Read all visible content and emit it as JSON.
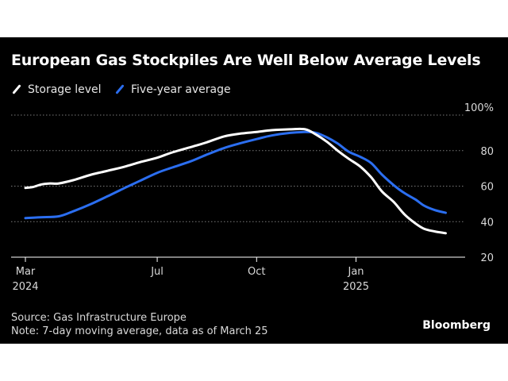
{
  "title": "European Gas Stockpiles Are Well Below Average Levels",
  "legend": [
    {
      "label": "Storage level",
      "color": "#ffffff"
    },
    {
      "label": "Five-year average",
      "color": "#2b6ef0"
    }
  ],
  "footer": {
    "source": "Source: Gas Infrastructure Europe",
    "note": "Note: 7-day moving average, data as of March 25"
  },
  "brand": "Bloomberg",
  "chart_data": {
    "type": "line",
    "title": "European Gas Stockpiles Are Well Below Average Levels",
    "xlabel": "",
    "ylabel": "",
    "ylim": [
      20,
      100
    ],
    "yticks": [
      {
        "value": 100,
        "label": "100%"
      },
      {
        "value": 80,
        "label": "80"
      },
      {
        "value": 60,
        "label": "60"
      },
      {
        "value": 40,
        "label": "40"
      },
      {
        "value": 20,
        "label": "20"
      }
    ],
    "xlim": [
      "2024-03-01",
      "2025-04-12"
    ],
    "xticks": [
      {
        "date": "2024-03-01",
        "label": [
          "Mar",
          "2024"
        ]
      },
      {
        "date": "2024-07-01",
        "label": [
          "Jul"
        ]
      },
      {
        "date": "2024-10-01",
        "label": [
          "Oct"
        ]
      },
      {
        "date": "2025-01-01",
        "label": [
          "Jan",
          "2025"
        ]
      }
    ],
    "grid": true,
    "legend_position": "top-left",
    "series": [
      {
        "name": "Storage level",
        "color": "#ffffff",
        "points": [
          [
            "2024-03-01",
            59
          ],
          [
            "2024-03-08",
            59.5
          ],
          [
            "2024-03-16",
            61
          ],
          [
            "2024-03-24",
            61.5
          ],
          [
            "2024-04-01",
            61.5
          ],
          [
            "2024-04-15",
            63.5
          ],
          [
            "2024-05-01",
            66.5
          ],
          [
            "2024-05-15",
            68.5
          ],
          [
            "2024-06-01",
            71
          ],
          [
            "2024-06-15",
            73.5
          ],
          [
            "2024-07-01",
            76
          ],
          [
            "2024-07-15",
            79
          ],
          [
            "2024-08-01",
            82
          ],
          [
            "2024-08-15",
            84.5
          ],
          [
            "2024-09-01",
            88
          ],
          [
            "2024-09-15",
            89.5
          ],
          [
            "2024-10-01",
            90.5
          ],
          [
            "2024-10-15",
            91.5
          ],
          [
            "2024-11-01",
            92
          ],
          [
            "2024-11-15",
            92
          ],
          [
            "2024-11-25",
            89
          ],
          [
            "2024-12-05",
            85
          ],
          [
            "2024-12-15",
            80
          ],
          [
            "2024-12-25",
            75.5
          ],
          [
            "2025-01-05",
            71
          ],
          [
            "2025-01-15",
            65
          ],
          [
            "2025-01-25",
            57
          ],
          [
            "2025-02-05",
            51
          ],
          [
            "2025-02-15",
            44
          ],
          [
            "2025-02-25",
            39
          ],
          [
            "2025-03-05",
            36
          ],
          [
            "2025-03-15",
            34.5
          ],
          [
            "2025-03-25",
            33.5
          ]
        ]
      },
      {
        "name": "Five-year average",
        "color": "#2b6ef0",
        "points": [
          [
            "2024-03-01",
            42
          ],
          [
            "2024-03-15",
            42.5
          ],
          [
            "2024-04-01",
            43
          ],
          [
            "2024-04-15",
            46
          ],
          [
            "2024-05-01",
            50
          ],
          [
            "2024-05-15",
            54
          ],
          [
            "2024-06-01",
            59
          ],
          [
            "2024-06-15",
            63
          ],
          [
            "2024-07-01",
            67.5
          ],
          [
            "2024-07-15",
            70.5
          ],
          [
            "2024-08-01",
            74
          ],
          [
            "2024-08-15",
            77.5
          ],
          [
            "2024-09-01",
            81.5
          ],
          [
            "2024-09-15",
            84
          ],
          [
            "2024-10-01",
            86.5
          ],
          [
            "2024-10-15",
            88.5
          ],
          [
            "2024-11-01",
            90
          ],
          [
            "2024-11-15",
            90.5
          ],
          [
            "2024-11-25",
            90
          ],
          [
            "2024-12-05",
            87.5
          ],
          [
            "2024-12-15",
            84
          ],
          [
            "2024-12-25",
            79.5
          ],
          [
            "2025-01-05",
            76.5
          ],
          [
            "2025-01-15",
            73
          ],
          [
            "2025-01-25",
            66.5
          ],
          [
            "2025-02-05",
            60.5
          ],
          [
            "2025-02-15",
            56
          ],
          [
            "2025-02-25",
            52.5
          ],
          [
            "2025-03-05",
            49
          ],
          [
            "2025-03-15",
            46.5
          ],
          [
            "2025-03-25",
            45
          ]
        ]
      }
    ]
  }
}
